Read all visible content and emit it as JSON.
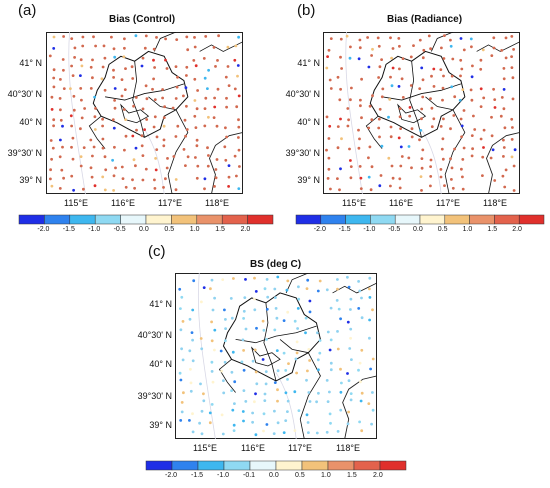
{
  "panels": [
    {
      "letter": "(a)",
      "title": "Bias (Control)"
    },
    {
      "letter": "(b)",
      "title": "Bias (Radiance)"
    },
    {
      "letter": "(c)",
      "title": "BS (deg C)"
    }
  ],
  "lat_labels": [
    "41° N",
    "40°30' N",
    "40° N",
    "39°30' N",
    "39° N"
  ],
  "lon_labels": [
    "115°E",
    "116°E",
    "117°E",
    "118°E"
  ],
  "colorbar": {
    "labels_ab": [
      "-2.0",
      "-1.5",
      "-1.0",
      "-0.5",
      "0.0",
      "0.5",
      "1.0",
      "1.5",
      "2.0"
    ],
    "labels_c": [
      "-2.0",
      "-1.5",
      "-1.0",
      "-0.1",
      "0.0",
      "0.5",
      "1.0",
      "1.5",
      "2.0"
    ],
    "colors": [
      "#1f2ee6",
      "#2f82ee",
      "#3eb7ef",
      "#8fd9f2",
      "#e7f7fb",
      "#fff4cf",
      "#f2c27a",
      "#e9926a",
      "#e3624c",
      "#e0302c"
    ]
  },
  "map_colors": {
    "a_main": "#d2694f",
    "b_main": "#d2694f",
    "c_main": "#8fd2f0"
  }
}
